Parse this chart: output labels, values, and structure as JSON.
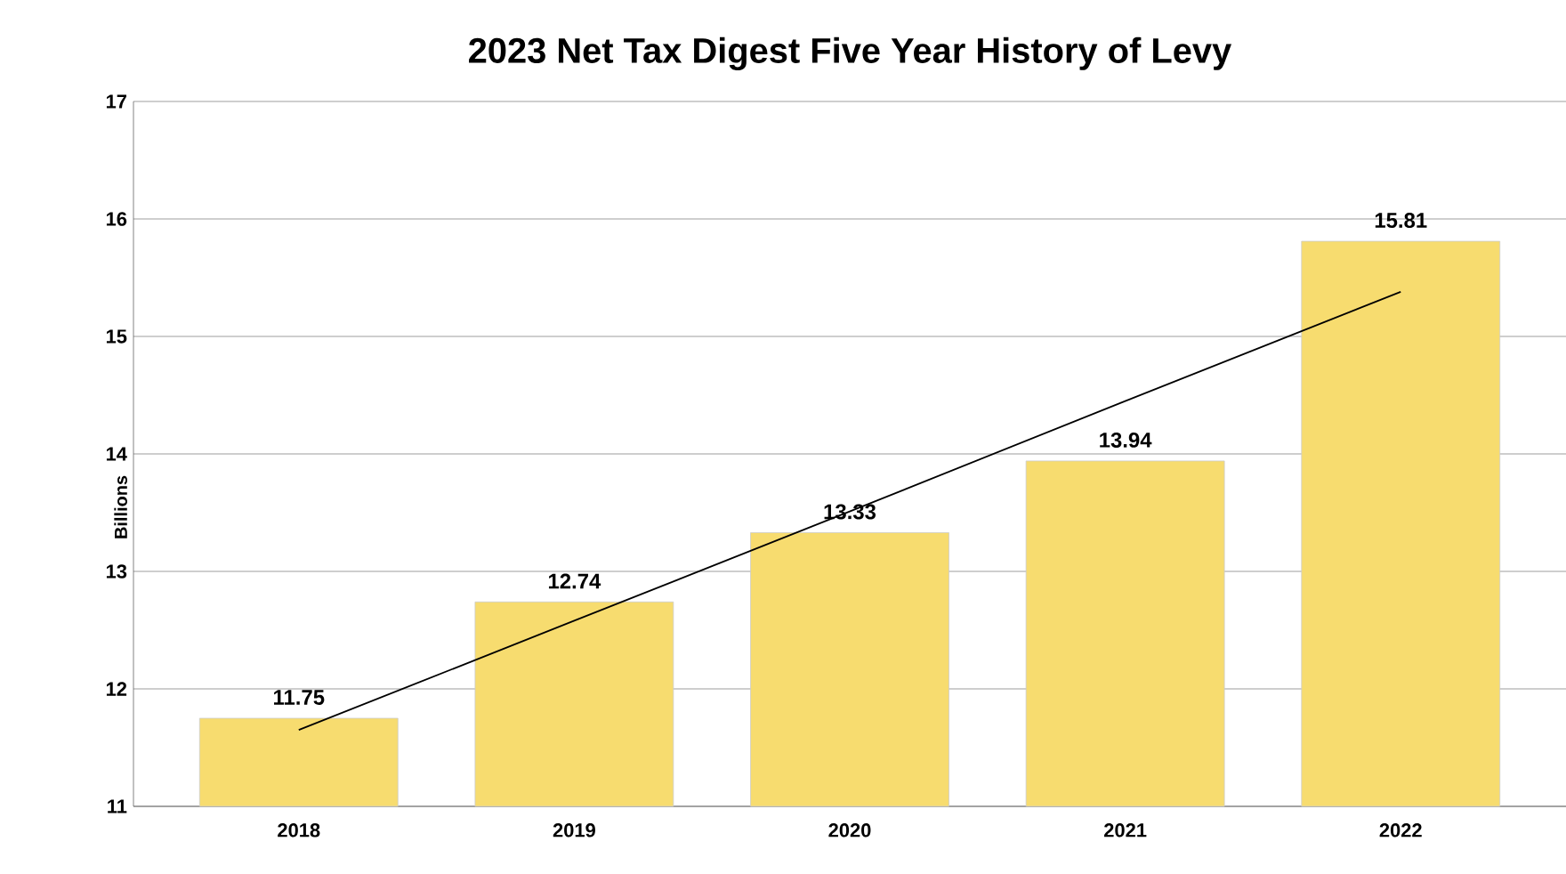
{
  "chart_data": {
    "type": "bar",
    "title": "2023 Net Tax Digest Five Year History of Levy",
    "ylabel": "Billions",
    "categories": [
      "2018",
      "2019",
      "2020",
      "2021",
      "2022"
    ],
    "series": [
      {
        "color": "#f7dc6f",
        "values": [
          11.75,
          12.74,
          13.33,
          13.94,
          15.81
        ],
        "value_labels": [
          "11.75",
          "12.74",
          "13.33",
          "13.94",
          "15.81"
        ]
      },
      {
        "type": "line",
        "color": "#000000",
        "values": [
          11.65,
          12.58,
          13.51,
          14.45,
          15.38
        ]
      }
    ],
    "ylim": [
      11,
      17
    ],
    "yticks": [
      11,
      12,
      13,
      14,
      15,
      16,
      17
    ],
    "grid": "y",
    "marker": "none",
    "line_style": "solid"
  }
}
